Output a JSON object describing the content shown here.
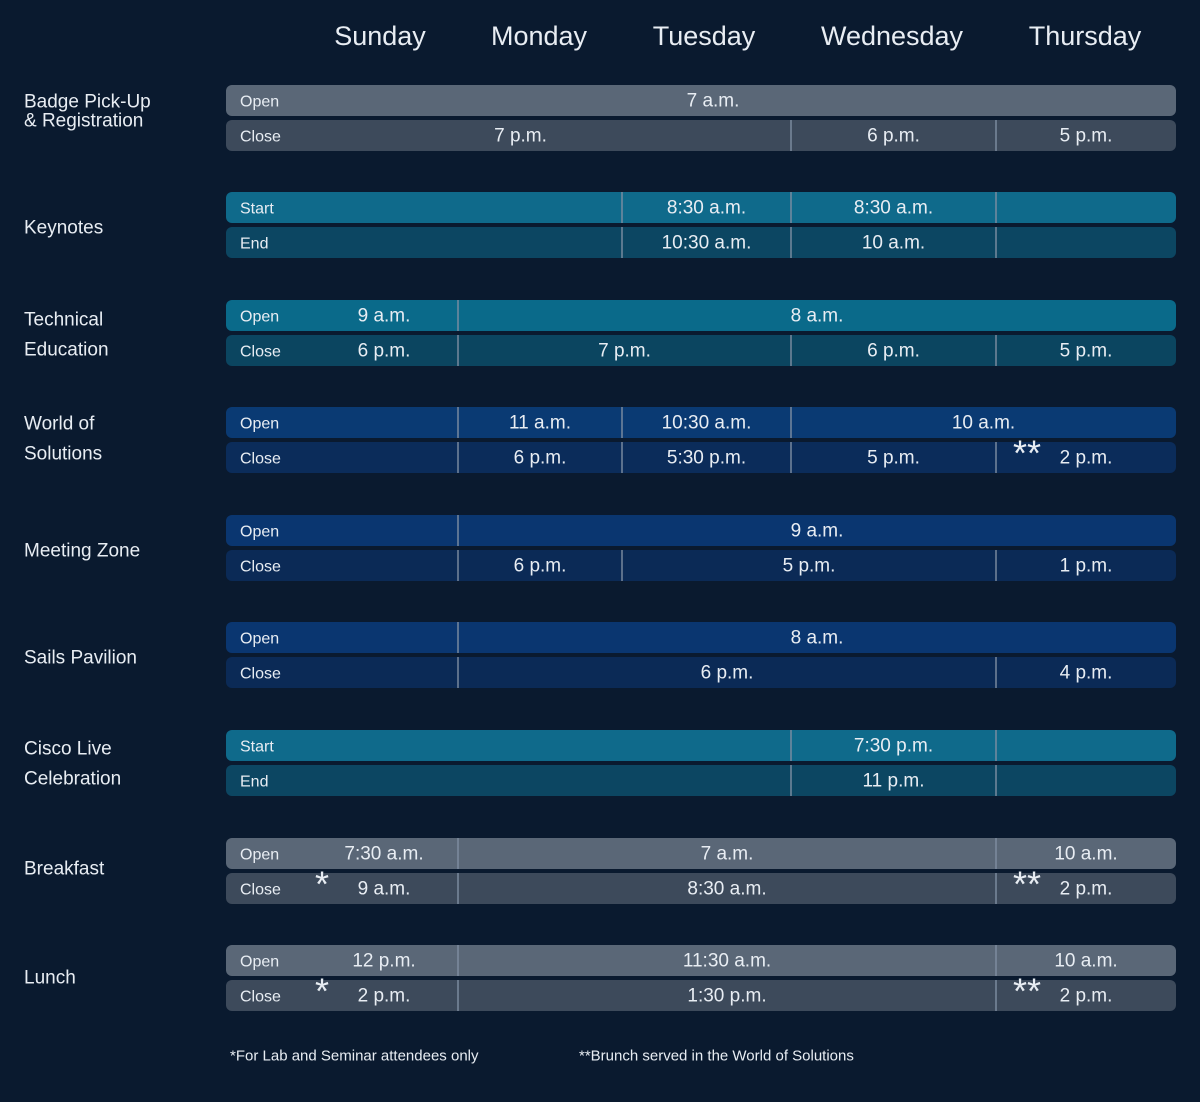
{
  "days": [
    "Sunday",
    "Monday",
    "Tuesday",
    "Wednesday",
    "Thursday"
  ],
  "rows": [
    {
      "label": [
        "Badge Pick-Up",
        "& Registration"
      ],
      "sessions": [
        {
          "label": "Open",
          "times": [
            "7 a.m."
          ]
        },
        {
          "label": "Close",
          "times": [
            "7 p.m.",
            "6 p.m.",
            "5 p.m."
          ]
        }
      ]
    },
    {
      "label": [
        "Keynotes"
      ],
      "sessions": [
        {
          "label": "Start",
          "times": [
            "8:30 a.m.",
            "8:30 a.m."
          ]
        },
        {
          "label": "End",
          "times": [
            "10:30 a.m.",
            "10 a.m."
          ]
        }
      ]
    },
    {
      "label": [
        "Technical",
        "Education"
      ],
      "sessions": [
        {
          "label": "Open",
          "times": [
            "9 a.m.",
            "8 a.m."
          ]
        },
        {
          "label": "Close",
          "times": [
            "6 p.m.",
            "7 p.m.",
            "6 p.m.",
            "5 p.m."
          ]
        }
      ]
    },
    {
      "label": [
        "World of",
        "Solutions"
      ],
      "sessions": [
        {
          "label": "Open",
          "times": [
            "11 a.m.",
            "10:30 a.m.",
            "10 a.m."
          ]
        },
        {
          "label": "Close",
          "times": [
            "6 p.m.",
            "5:30 p.m.",
            "5 p.m.",
            "2 p.m."
          ]
        }
      ],
      "marks": [
        "**"
      ]
    },
    {
      "label": [
        "Meeting Zone"
      ],
      "sessions": [
        {
          "label": "Open",
          "times": [
            "9 a.m."
          ]
        },
        {
          "label": "Close",
          "times": [
            "6 p.m.",
            "5 p.m.",
            "1 p.m."
          ]
        }
      ]
    },
    {
      "label": [
        "Sails Pavilion"
      ],
      "sessions": [
        {
          "label": "Open",
          "times": [
            "8 a.m."
          ]
        },
        {
          "label": "Close",
          "times": [
            "6 p.m.",
            "4 p.m."
          ]
        }
      ]
    },
    {
      "label": [
        "Cisco Live",
        "Celebration"
      ],
      "sessions": [
        {
          "label": "Start",
          "times": [
            "7:30 p.m."
          ]
        },
        {
          "label": "End",
          "times": [
            "11 p.m."
          ]
        }
      ]
    },
    {
      "label": [
        "Breakfast"
      ],
      "sessions": [
        {
          "label": "Open",
          "times": [
            "7:30 a.m.",
            "7 a.m.",
            "10 a.m."
          ]
        },
        {
          "label": "Close",
          "times": [
            "9 a.m.",
            "8:30 a.m.",
            "2 p.m."
          ]
        }
      ],
      "marks": [
        "*",
        "**"
      ]
    },
    {
      "label": [
        "Lunch"
      ],
      "sessions": [
        {
          "label": "Open",
          "times": [
            "12 p.m.",
            "11:30 a.m.",
            "10 a.m."
          ]
        },
        {
          "label": "Close",
          "times": [
            "2 p.m.",
            "1:30 p.m.",
            "2 p.m."
          ]
        }
      ],
      "marks": [
        "*",
        "**"
      ]
    }
  ],
  "footnotes": [
    "*For Lab and Seminar attendees only",
    "**Brunch served in the World of Solutions"
  ]
}
